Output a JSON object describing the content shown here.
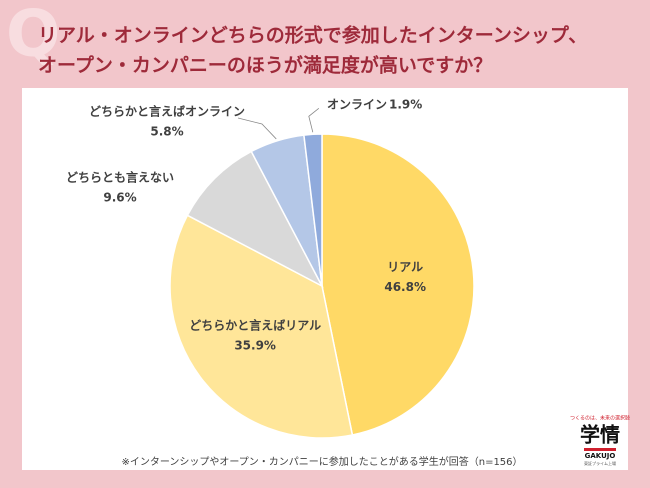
{
  "badge": "Q",
  "chart_data": {
    "type": "pie",
    "title_lines": [
      "リアル・オンラインどちらの形式で参加したインターンシップ、",
      "オープン・カンパニーのほうが満足度が高いですか？"
    ],
    "categories": [
      "リアル",
      "どちらかと言えばリアル",
      "どちらとも言えない",
      "どちらかと言えばオンライン",
      "オンライン"
    ],
    "values": [
      46.8,
      35.9,
      9.6,
      5.8,
      1.9
    ],
    "value_labels": [
      "46.8%",
      "35.9%",
      "9.6%",
      "5.8%",
      "1.9%"
    ],
    "colors": [
      "#ffd966",
      "#ffe699",
      "#d9d9d9",
      "#b4c7e7",
      "#8faadc"
    ],
    "note": "※インターンシップやオープン・カンパニーに参加したことがある学生が回答（n=156）"
  },
  "logo": {
    "tagline": "つくるのは、未来の選択肢",
    "name": "学情",
    "roman": "GAKUJO",
    "listing": "東証プライム上場"
  }
}
